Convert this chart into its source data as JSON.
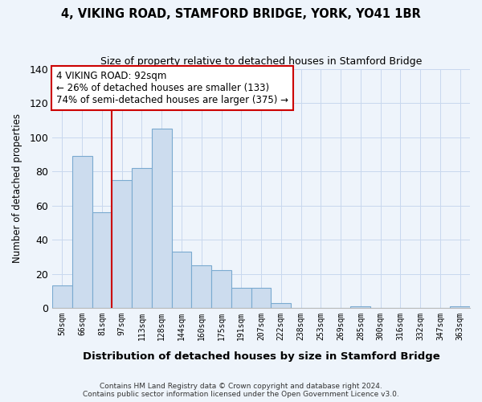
{
  "title": "4, VIKING ROAD, STAMFORD BRIDGE, YORK, YO41 1BR",
  "subtitle": "Size of property relative to detached houses in Stamford Bridge",
  "xlabel": "Distribution of detached houses by size in Stamford Bridge",
  "ylabel": "Number of detached properties",
  "bar_labels": [
    "50sqm",
    "66sqm",
    "81sqm",
    "97sqm",
    "113sqm",
    "128sqm",
    "144sqm",
    "160sqm",
    "175sqm",
    "191sqm",
    "207sqm",
    "222sqm",
    "238sqm",
    "253sqm",
    "269sqm",
    "285sqm",
    "300sqm",
    "316sqm",
    "332sqm",
    "347sqm",
    "363sqm"
  ],
  "bar_values": [
    13,
    89,
    56,
    75,
    82,
    105,
    33,
    25,
    22,
    12,
    12,
    3,
    0,
    0,
    0,
    1,
    0,
    0,
    0,
    0,
    1
  ],
  "bar_color": "#ccdcee",
  "bar_edge_color": "#7aaad0",
  "vline_color": "#cc0000",
  "annotation_text": "4 VIKING ROAD: 92sqm\n← 26% of detached houses are smaller (133)\n74% of semi-detached houses are larger (375) →",
  "annotation_box_facecolor": "#ffffff",
  "annotation_box_edgecolor": "#cc0000",
  "ylim": [
    0,
    140
  ],
  "yticks": [
    0,
    20,
    40,
    60,
    80,
    100,
    120,
    140
  ],
  "footer_line1": "Contains HM Land Registry data © Crown copyright and database right 2024.",
  "footer_line2": "Contains public sector information licensed under the Open Government Licence v3.0.",
  "grid_color": "#c8d8ee",
  "background_color": "#eef4fb",
  "plot_bg_color": "#eef4fb"
}
